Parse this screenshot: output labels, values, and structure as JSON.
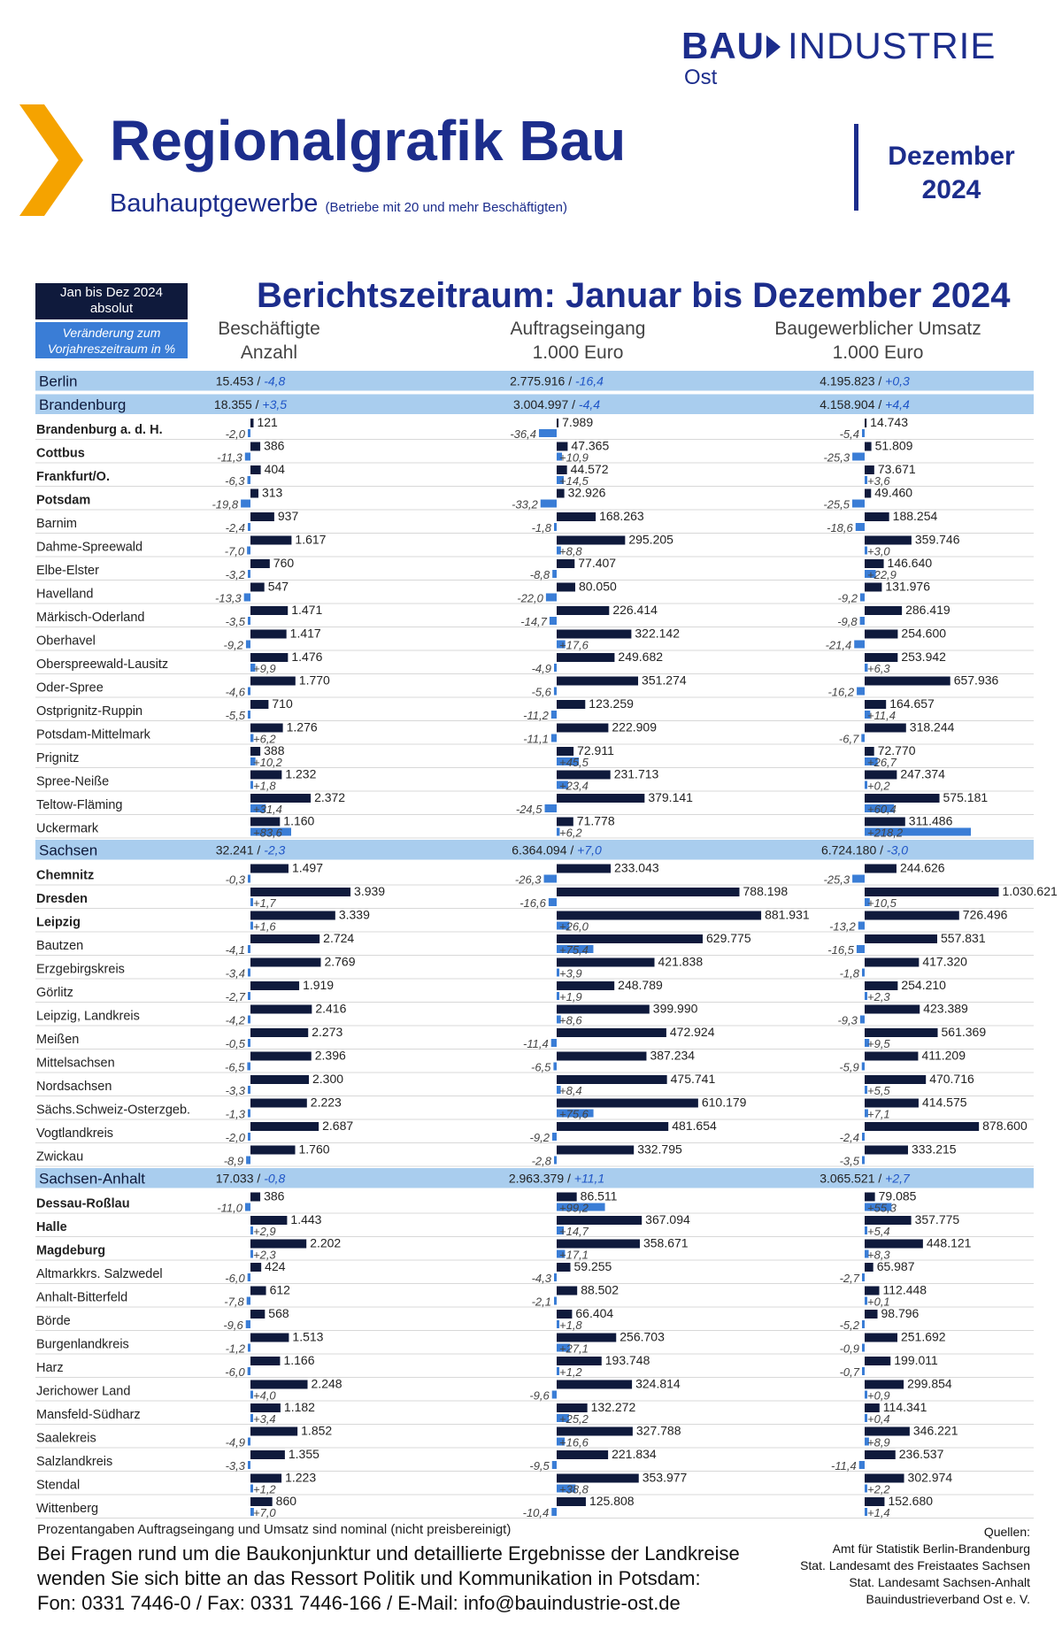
{
  "header": {
    "logo_main": "BAU",
    "logo_industrie": "INDUSTRIE",
    "logo_sub": "Ost",
    "title": "Regionalgrafik Bau",
    "subtitle": "Bauhauptgewerbe",
    "subtitle_note": "(Betriebe mit 20 und mehr Beschäftigten)",
    "month": "Dezember",
    "year": "2024"
  },
  "legend": {
    "absolute_line1": "Jan bis Dez 2024",
    "absolute_line2": "absolut",
    "change_line1": "Veränderung zum",
    "change_line2": "Vorjahreszeitraum in %"
  },
  "period_title": "Berichtszeitraum: Januar bis Dezember 2024",
  "columns": [
    {
      "name": "Beschäftigte",
      "unit": "Anzahl"
    },
    {
      "name": "Auftragseingang",
      "unit": "1.000 Euro"
    },
    {
      "name": "Baugewerblicher Umsatz",
      "unit": "1.000 Euro"
    }
  ],
  "colors": {
    "navy": "#1c2d8c",
    "bar_abs": "#0f1a3c",
    "bar_pct": "#3a7dd6",
    "state_row": "#a9cdee",
    "pct_text": "#1f55c7"
  },
  "chart_data": {
    "type": "bar",
    "series": [
      "Beschäftigte",
      "Auftragseingang",
      "Baugewerblicher Umsatz"
    ],
    "rows": [
      {
        "name": "Berlin",
        "state": true,
        "vals": [
          15453,
          2775916,
          4195823
        ],
        "pcts": [
          -4.8,
          -16.4,
          0.3
        ]
      },
      {
        "name": "Brandenburg",
        "state": true,
        "vals": [
          18355,
          3004997,
          4158904
        ],
        "pcts": [
          3.5,
          -4.4,
          4.4
        ]
      },
      {
        "name": "Brandenburg a. d. H.",
        "city": true,
        "vals": [
          121,
          7989,
          14743
        ],
        "pcts": [
          -2.0,
          -36.4,
          -5.4
        ]
      },
      {
        "name": "Cottbus",
        "city": true,
        "vals": [
          386,
          47365,
          51809
        ],
        "pcts": [
          -11.3,
          10.9,
          -25.3
        ]
      },
      {
        "name": "Frankfurt/O.",
        "city": true,
        "vals": [
          404,
          44572,
          73671
        ],
        "pcts": [
          -6.3,
          14.5,
          3.6
        ]
      },
      {
        "name": "Potsdam",
        "city": true,
        "vals": [
          313,
          32926,
          49460
        ],
        "pcts": [
          -19.8,
          -33.2,
          -25.5
        ]
      },
      {
        "name": "Barnim",
        "vals": [
          937,
          168263,
          188254
        ],
        "pcts": [
          -2.4,
          -1.8,
          -18.6
        ]
      },
      {
        "name": "Dahme-Spreewald",
        "vals": [
          1617,
          295205,
          359746
        ],
        "pcts": [
          -7.0,
          8.8,
          3.0
        ]
      },
      {
        "name": "Elbe-Elster",
        "vals": [
          760,
          77407,
          146640
        ],
        "pcts": [
          -3.2,
          -8.8,
          22.9
        ]
      },
      {
        "name": "Havelland",
        "vals": [
          547,
          80050,
          131976
        ],
        "pcts": [
          -13.3,
          -22.0,
          -9.2
        ]
      },
      {
        "name": "Märkisch-Oderland",
        "vals": [
          1471,
          226414,
          286419
        ],
        "pcts": [
          -3.5,
          -14.7,
          -9.8
        ]
      },
      {
        "name": "Oberhavel",
        "vals": [
          1417,
          322142,
          254600
        ],
        "pcts": [
          -9.2,
          17.6,
          -21.4
        ]
      },
      {
        "name": "Oberspreewald-Lausitz",
        "vals": [
          1476,
          249682,
          253942
        ],
        "pcts": [
          9.9,
          -4.9,
          6.3
        ]
      },
      {
        "name": "Oder-Spree",
        "vals": [
          1770,
          351274,
          657936
        ],
        "pcts": [
          -4.6,
          -5.6,
          -16.2
        ]
      },
      {
        "name": "Ostprignitz-Ruppin",
        "vals": [
          710,
          123259,
          164657
        ],
        "pcts": [
          -5.5,
          -11.2,
          11.4
        ]
      },
      {
        "name": "Potsdam-Mittelmark",
        "vals": [
          1276,
          222909,
          318244
        ],
        "pcts": [
          6.2,
          -11.1,
          -6.7
        ]
      },
      {
        "name": "Prignitz",
        "vals": [
          388,
          72911,
          72770
        ],
        "pcts": [
          10.2,
          45.5,
          26.7
        ]
      },
      {
        "name": "Spree-Neiße",
        "vals": [
          1232,
          231713,
          247374
        ],
        "pcts": [
          1.8,
          23.4,
          0.2
        ]
      },
      {
        "name": "Teltow-Fläming",
        "vals": [
          2372,
          379141,
          575181
        ],
        "pcts": [
          31.4,
          -24.5,
          60.4
        ]
      },
      {
        "name": "Uckermark",
        "vals": [
          1160,
          71778,
          311486
        ],
        "pcts": [
          83.6,
          6.2,
          218.2
        ]
      },
      {
        "name": "Sachsen",
        "state": true,
        "vals": [
          32241,
          6364094,
          6724180
        ],
        "pcts": [
          -2.3,
          7.0,
          -3.0
        ]
      },
      {
        "name": "Chemnitz",
        "city": true,
        "vals": [
          1497,
          233043,
          244626
        ],
        "pcts": [
          -0.3,
          -26.3,
          -25.3
        ]
      },
      {
        "name": "Dresden",
        "city": true,
        "vals": [
          3939,
          788198,
          1030621
        ],
        "pcts": [
          1.7,
          -16.6,
          10.5
        ]
      },
      {
        "name": "Leipzig",
        "city": true,
        "vals": [
          3339,
          881931,
          726496
        ],
        "pcts": [
          1.6,
          26.0,
          -13.2
        ]
      },
      {
        "name": "Bautzen",
        "vals": [
          2724,
          629775,
          557831
        ],
        "pcts": [
          -4.1,
          75.4,
          -16.5
        ]
      },
      {
        "name": "Erzgebirgskreis",
        "vals": [
          2769,
          421838,
          417320
        ],
        "pcts": [
          -3.4,
          3.9,
          -1.8
        ]
      },
      {
        "name": "Görlitz",
        "vals": [
          1919,
          248789,
          254210
        ],
        "pcts": [
          -2.7,
          1.9,
          2.3
        ]
      },
      {
        "name": "Leipzig, Landkreis",
        "vals": [
          2416,
          399990,
          423389
        ],
        "pcts": [
          -4.2,
          8.6,
          -9.3
        ]
      },
      {
        "name": "Meißen",
        "vals": [
          2273,
          472924,
          561369
        ],
        "pcts": [
          -0.5,
          -11.4,
          9.5
        ]
      },
      {
        "name": "Mittelsachsen",
        "vals": [
          2396,
          387234,
          411209
        ],
        "pcts": [
          -6.5,
          -6.5,
          -5.9
        ]
      },
      {
        "name": "Nordsachsen",
        "vals": [
          2300,
          475741,
          470716
        ],
        "pcts": [
          -3.3,
          8.4,
          5.5
        ]
      },
      {
        "name": "Sächs.Schweiz-Osterzgeb.",
        "vals": [
          2223,
          610179,
          414575
        ],
        "pcts": [
          -1.3,
          75.6,
          7.1
        ]
      },
      {
        "name": "Vogtlandkreis",
        "vals": [
          2687,
          481654,
          878600
        ],
        "pcts": [
          -2.0,
          -9.2,
          -2.4
        ]
      },
      {
        "name": "Zwickau",
        "vals": [
          1760,
          332795,
          333215
        ],
        "pcts": [
          -8.9,
          -2.8,
          -3.5
        ]
      },
      {
        "name": "Sachsen-Anhalt",
        "state": true,
        "vals": [
          17033,
          2963379,
          3065521
        ],
        "pcts": [
          -0.8,
          11.1,
          2.7
        ]
      },
      {
        "name": "Dessau-Roßlau",
        "city": true,
        "vals": [
          386,
          86511,
          79085
        ],
        "pcts": [
          -11.0,
          99.2,
          55.3
        ]
      },
      {
        "name": "Halle",
        "city": true,
        "vals": [
          1443,
          367094,
          357775
        ],
        "pcts": [
          2.9,
          14.7,
          5.4
        ]
      },
      {
        "name": "Magdeburg",
        "city": true,
        "vals": [
          2202,
          358671,
          448121
        ],
        "pcts": [
          2.3,
          17.1,
          8.3
        ]
      },
      {
        "name": "Altmarkkrs. Salzwedel",
        "vals": [
          424,
          59255,
          65987
        ],
        "pcts": [
          -6.0,
          -4.3,
          -2.7
        ]
      },
      {
        "name": "Anhalt-Bitterfeld",
        "vals": [
          612,
          88502,
          112448
        ],
        "pcts": [
          -7.8,
          -2.1,
          0.1
        ]
      },
      {
        "name": "Börde",
        "vals": [
          568,
          66404,
          98796
        ],
        "pcts": [
          -9.6,
          1.8,
          -5.2
        ]
      },
      {
        "name": "Burgenlandkreis",
        "vals": [
          1513,
          256703,
          251692
        ],
        "pcts": [
          -1.2,
          27.1,
          -0.9
        ]
      },
      {
        "name": "Harz",
        "vals": [
          1166,
          193748,
          199011
        ],
        "pcts": [
          -6.0,
          1.2,
          -0.7
        ]
      },
      {
        "name": "Jerichower Land",
        "vals": [
          2248,
          324814,
          299854
        ],
        "pcts": [
          4.0,
          -9.6,
          0.9
        ]
      },
      {
        "name": "Mansfeld-Südharz",
        "vals": [
          1182,
          132272,
          114341
        ],
        "pcts": [
          3.4,
          25.2,
          0.4
        ]
      },
      {
        "name": "Saalekreis",
        "vals": [
          1852,
          327788,
          346221
        ],
        "pcts": [
          -4.9,
          16.6,
          8.9
        ]
      },
      {
        "name": "Salzlandkreis",
        "vals": [
          1355,
          221834,
          236537
        ],
        "pcts": [
          -3.3,
          -9.5,
          -11.4
        ]
      },
      {
        "name": "Stendal",
        "vals": [
          1223,
          353977,
          302974
        ],
        "pcts": [
          1.2,
          38.8,
          2.2
        ]
      },
      {
        "name": "Wittenberg",
        "vals": [
          860,
          125808,
          152680
        ],
        "pcts": [
          7.0,
          -10.4,
          1.4
        ]
      }
    ]
  },
  "footer": {
    "note": "Prozentangaben Auftragseingang und Umsatz sind nominal (nicht preisbereinigt)",
    "line1": "Bei Fragen rund um die Baukonjunktur und detaillierte Ergebnisse der Landkreise",
    "line2": "wenden Sie sich bitte an das Ressort Politik und Kommunikation in Potsdam:",
    "line3": "Fon: 0331 7446-0 / Fax: 0331 7446-166 / E-Mail: info@bauindustrie-ost.de",
    "sources_title": "Quellen:",
    "sources": [
      "Amt für Statistik Berlin-Brandenburg",
      "Stat. Landesamt des Freistaates Sachsen",
      "Stat. Landesamt Sachsen-Anhalt",
      "Bauindustrieverband Ost e. V."
    ]
  }
}
